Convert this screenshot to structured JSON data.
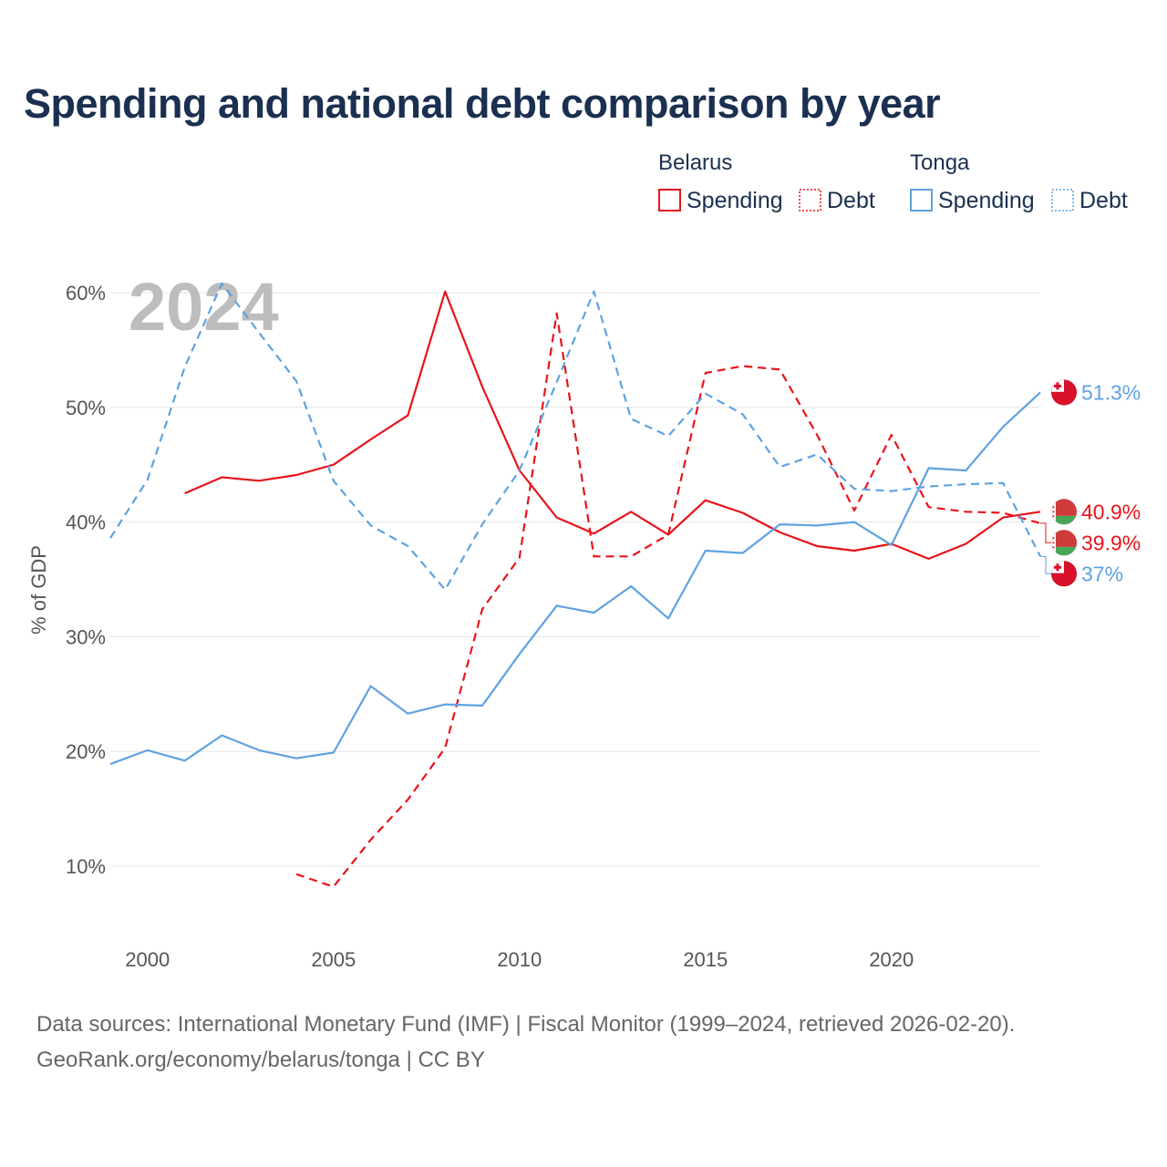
{
  "title": "Spending and national debt comparison by year",
  "chart_data": {
    "type": "line",
    "year_label": "2024",
    "ylabel": "% of GDP",
    "xlim": [
      1999,
      2024
    ],
    "ylim": [
      5,
      60
    ],
    "x_ticks": [
      2000,
      2005,
      2010,
      2015,
      2020
    ],
    "x_tick_labels": [
      "2000",
      "2005",
      "2010",
      "2015",
      "2020"
    ],
    "y_ticks": [
      10,
      20,
      30,
      40,
      50,
      60
    ],
    "y_tick_labels": [
      "10%",
      "20%",
      "30%",
      "40%",
      "50%",
      "60%"
    ],
    "legend": {
      "groups": [
        {
          "country": "Belarus",
          "items": [
            "Spending",
            "Debt"
          ]
        },
        {
          "country": "Tonga",
          "items": [
            "Spending",
            "Debt"
          ]
        }
      ]
    },
    "series": [
      {
        "name": "Belarus Spending",
        "country": "Belarus",
        "measure": "Spending",
        "color": "#e8131b",
        "dash": "solid",
        "x": [
          2001,
          2002,
          2003,
          2004,
          2005,
          2006,
          2007,
          2008,
          2009,
          2010,
          2011,
          2012,
          2013,
          2014,
          2015,
          2016,
          2017,
          2018,
          2019,
          2020,
          2021,
          2022,
          2023,
          2024
        ],
        "values": [
          42.5,
          43.9,
          43.6,
          44.1,
          45.0,
          47.2,
          49.3,
          60.1,
          51.8,
          44.5,
          40.4,
          39.0,
          40.9,
          38.9,
          41.9,
          40.8,
          39.1,
          37.9,
          37.5,
          38.1,
          36.8,
          38.1,
          40.4,
          40.9
        ],
        "end_label": "40.9%"
      },
      {
        "name": "Belarus Debt",
        "country": "Belarus",
        "measure": "Debt",
        "color": "#e8131b",
        "dash": "dashed",
        "x": [
          2004,
          2005,
          2006,
          2007,
          2008,
          2009,
          2010,
          2011,
          2012,
          2013,
          2014,
          2015,
          2016,
          2017,
          2018,
          2019,
          2020,
          2021,
          2022,
          2023,
          2024
        ],
        "values": [
          9.3,
          8.2,
          12.3,
          15.8,
          20.3,
          32.4,
          36.9,
          58.2,
          37.0,
          37.0,
          38.9,
          53.0,
          53.6,
          53.3,
          47.6,
          41.0,
          47.6,
          41.3,
          40.9,
          40.8,
          39.9
        ],
        "end_label": "39.9%"
      },
      {
        "name": "Tonga Spending",
        "country": "Tonga",
        "measure": "Spending",
        "color": "#5fa2e0",
        "dash": "solid",
        "x": [
          1999,
          2000,
          2001,
          2002,
          2003,
          2004,
          2005,
          2006,
          2007,
          2008,
          2009,
          2010,
          2011,
          2012,
          2013,
          2014,
          2015,
          2016,
          2017,
          2018,
          2019,
          2020,
          2021,
          2022,
          2023,
          2024
        ],
        "values": [
          18.9,
          20.1,
          19.2,
          21.4,
          20.1,
          19.4,
          19.9,
          25.7,
          23.3,
          24.1,
          24.0,
          28.5,
          32.7,
          32.1,
          34.4,
          31.6,
          37.5,
          37.3,
          39.8,
          39.7,
          40.0,
          38.0,
          44.7,
          44.5,
          48.3,
          51.3
        ],
        "end_label": "51.3%"
      },
      {
        "name": "Tonga Debt",
        "country": "Tonga",
        "measure": "Debt",
        "color": "#5fa2e0",
        "dash": "dashed",
        "x": [
          1999,
          2000,
          2001,
          2002,
          2003,
          2004,
          2005,
          2006,
          2007,
          2008,
          2009,
          2010,
          2011,
          2012,
          2013,
          2014,
          2015,
          2016,
          2017,
          2018,
          2019,
          2020,
          2021,
          2022,
          2023,
          2024
        ],
        "values": [
          38.6,
          43.7,
          53.5,
          60.8,
          56.5,
          52.3,
          43.6,
          39.7,
          37.9,
          34.1,
          39.8,
          44.5,
          52.2,
          60.1,
          49.0,
          47.5,
          51.2,
          49.4,
          44.8,
          45.9,
          42.9,
          42.7,
          43.1,
          43.3,
          43.4,
          37.0
        ],
        "end_label": "37%"
      }
    ]
  },
  "footer": {
    "sources": "Data sources: International Monetary Fund (IMF) | Fiscal Monitor (1999–2024, retrieved 2026-02-20).",
    "attribution": "GeoRank.org/economy/belarus/tonga | CC BY"
  },
  "colors": {
    "title": "#1b3050",
    "belarus": "#e8131b",
    "tonga": "#5fa2e0",
    "grid": "#e6e6e6"
  },
  "icons": {
    "belarus_flag": "belarus-flag-icon",
    "tonga_flag": "tonga-flag-icon"
  }
}
